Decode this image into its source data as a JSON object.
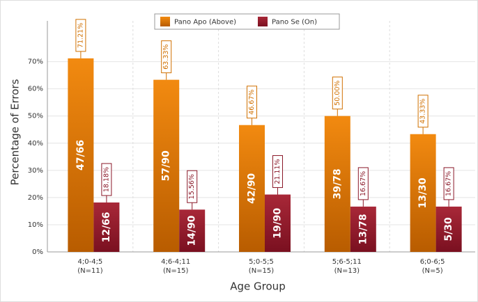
{
  "chart_data": {
    "type": "bar",
    "x_label": "Age Group",
    "y_label": "Percentage of Errors",
    "categories": [
      "4;0-4;5",
      "4;6-4;11",
      "5;0-5;5",
      "5;6-5;11",
      "6;0-6;5"
    ],
    "category_notes": [
      "(N=11)",
      "(N=15)",
      "(N=15)",
      "(N=13)",
      "(N=5)"
    ],
    "series": [
      {
        "name": "Pano Apo (Above)",
        "color": "#e87a00",
        "values": [
          71.21,
          63.33,
          46.67,
          50.0,
          43.33
        ],
        "value_labels": [
          "71.21%",
          "63.33%",
          "46.67%",
          "50.00%",
          "43.33%"
        ],
        "fraction_labels": [
          "47/66",
          "57/90",
          "42/90",
          "39/78",
          "13/30"
        ]
      },
      {
        "name": "Pano Se (On)",
        "color": "#9a1c2c",
        "values": [
          18.18,
          15.56,
          21.11,
          16.67,
          16.67
        ],
        "value_labels": [
          "18.18%",
          "15.56%",
          "21.11%",
          "16.67%",
          "16.67%"
        ],
        "fraction_labels": [
          "12/66",
          "14/90",
          "19/90",
          "13/78",
          "5/30"
        ]
      }
    ],
    "ylim": [
      0,
      85
    ],
    "yticks": [
      {
        "value": 0,
        "label": "0%"
      },
      {
        "value": 10,
        "label": "10%"
      },
      {
        "value": 20,
        "label": "20%"
      },
      {
        "value": 30,
        "label": "30%"
      },
      {
        "value": 40,
        "label": "40%"
      },
      {
        "value": 50,
        "label": "50%"
      },
      {
        "value": 60,
        "label": "60%"
      },
      {
        "value": 70,
        "label": "70%"
      }
    ],
    "grid": true,
    "legend": "top"
  }
}
